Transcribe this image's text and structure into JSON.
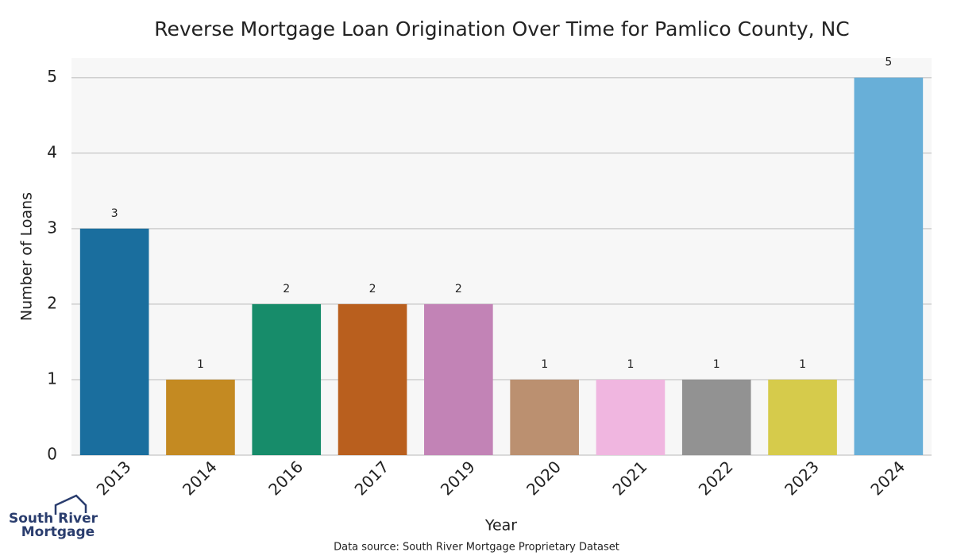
{
  "chart_data": {
    "type": "bar",
    "title": "Reverse Mortgage Loan Origination Over Time for Pamlico County, NC",
    "x_label": "Year",
    "y_label": "Number of Loans",
    "categories": [
      "2013",
      "2014",
      "2016",
      "2017",
      "2019",
      "2020",
      "2021",
      "2022",
      "2023",
      "2024"
    ],
    "values": [
      3,
      1,
      2,
      2,
      2,
      1,
      1,
      1,
      1,
      5
    ],
    "colors": [
      "#1a6e9e",
      "#c48a22",
      "#178c6a",
      "#b95f1e",
      "#c283b6",
      "#bb9070",
      "#f0b6e0",
      "#929292",
      "#d6cb4b",
      "#68afd8"
    ],
    "ylim": [
      0,
      5.26
    ],
    "yticks": [
      0,
      1,
      2,
      3,
      4,
      5
    ],
    "grid": true,
    "source": "Data source: South River Mortgage Proprietary Dataset",
    "logo": [
      "South River",
      "Mortgage"
    ]
  }
}
